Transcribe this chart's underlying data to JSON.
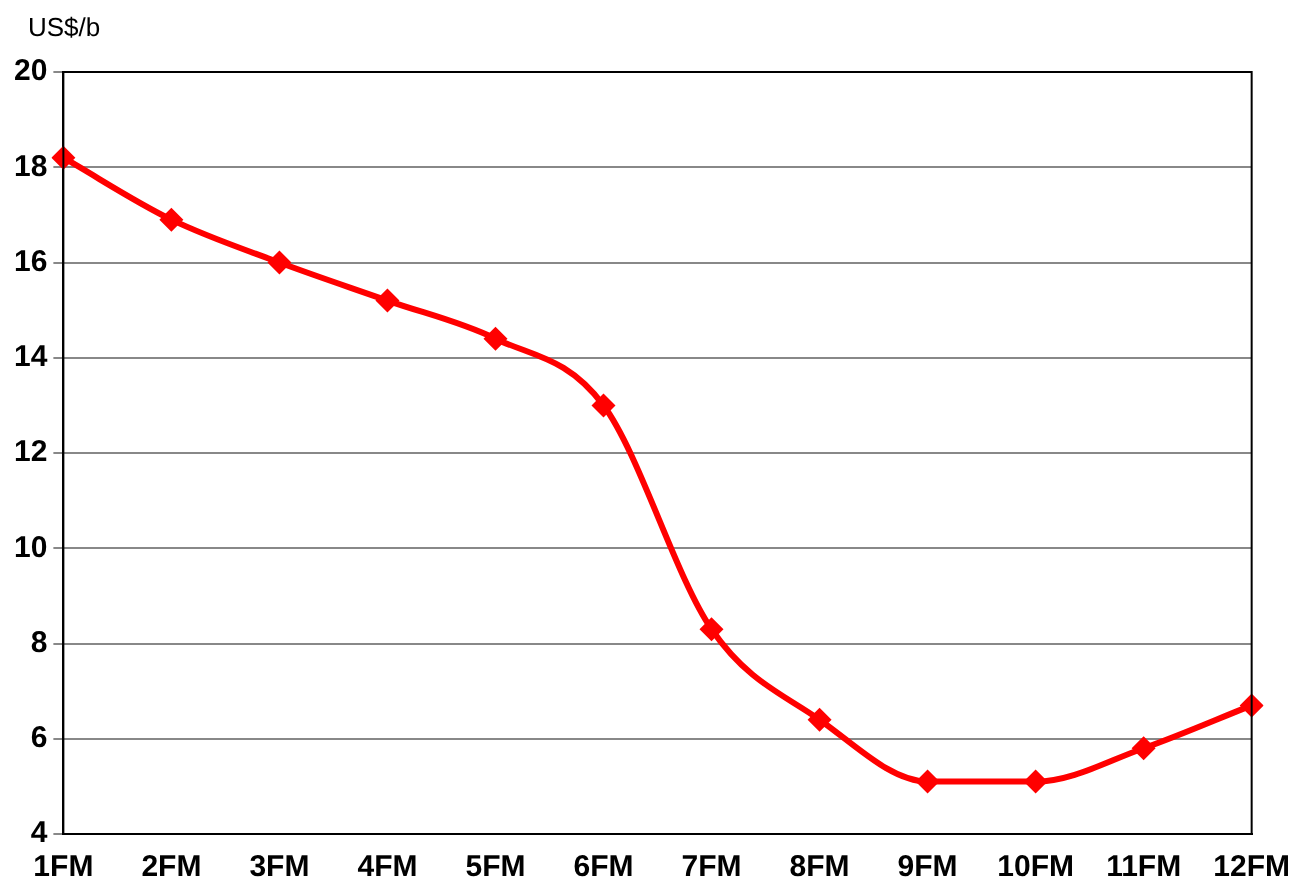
{
  "chart_data": {
    "type": "line",
    "ylabel": "US$/b",
    "categories": [
      "1FM",
      "2FM",
      "3FM",
      "4FM",
      "5FM",
      "6FM",
      "7FM",
      "8FM",
      "9FM",
      "10FM",
      "11FM",
      "12FM"
    ],
    "series": [
      {
        "color": "#ff0000",
        "values": [
          18.2,
          16.9,
          16.0,
          15.2,
          14.4,
          13.0,
          8.3,
          6.4,
          5.1,
          5.1,
          5.8,
          6.7
        ]
      }
    ],
    "ylim": [
      4,
      20
    ],
    "yticks": [
      4,
      6,
      8,
      10,
      12,
      14,
      16,
      18,
      20
    ],
    "grid": "y",
    "legend": false,
    "marker": "diamond",
    "line_style": "solid"
  }
}
